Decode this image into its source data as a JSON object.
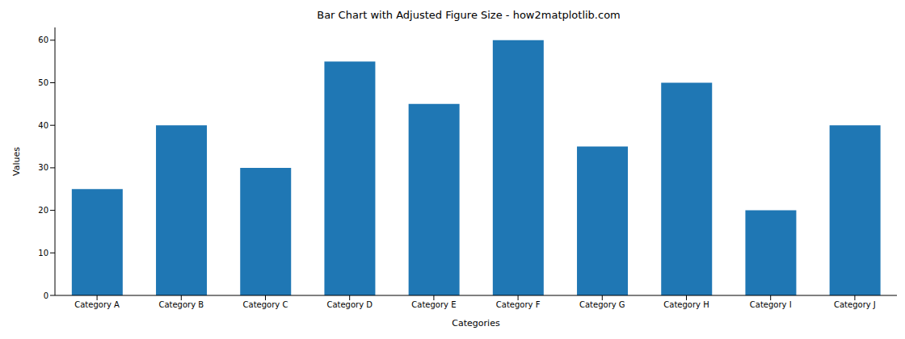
{
  "chart_data": {
    "type": "bar",
    "title": "Bar Chart with Adjusted Figure Size - how2matplotlib.com",
    "x_label": "Categories",
    "y_label": "Values",
    "categories": [
      "Category A",
      "Category B",
      "Category C",
      "Category D",
      "Category E",
      "Category F",
      "Category G",
      "Category H",
      "Category I",
      "Category J"
    ],
    "values": [
      25,
      40,
      30,
      55,
      45,
      60,
      35,
      50,
      20,
      40
    ],
    "color": "#1f77b4",
    "ylim": [
      0,
      63
    ],
    "yticks": [
      0,
      10,
      20,
      30,
      40,
      50,
      60
    ],
    "grid": false
  }
}
